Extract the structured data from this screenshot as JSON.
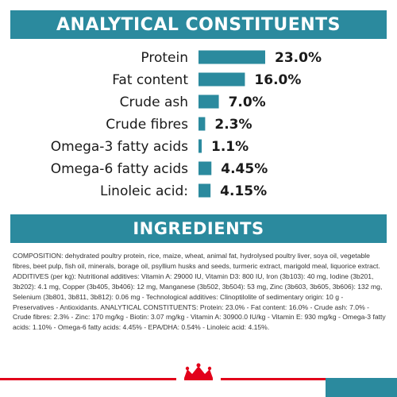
{
  "header": {
    "title": "ANALYTICAL CONSTITUENTS"
  },
  "chart_data": {
    "type": "bar",
    "categories": [
      "Protein",
      "Fat content",
      "Crude ash",
      "Crude fibres",
      "Omega-3 fatty acids",
      "Omega-6 fatty acids",
      "Linoleic acid:"
    ],
    "values": [
      23.0,
      16.0,
      7.0,
      2.3,
      1.1,
      4.45,
      4.15
    ],
    "value_labels": [
      "23.0%",
      "16.0%",
      "7.0%",
      "2.3%",
      "1.1%",
      "4.45%",
      "4.15%"
    ],
    "title": "ANALYTICAL CONSTITUENTS",
    "unit": "%",
    "orientation": "horizontal",
    "bar_color": "#2b8a9e",
    "grid": false,
    "legend": "none"
  },
  "ingredients": {
    "title": "INGREDIENTS",
    "text": "COMPOSITION: dehydrated poultry protein, rice, maize, wheat, animal fat, hydrolysed poultry liver, soya oil, vegetable fibres, beet pulp, fish oil, minerals, borage oil, psyllium husks and seeds, turmeric extract, marigold meal, liquorice extract. ADDITIVES (per kg): Nutritional additives: Vitamin A: 29000 IU, Vitamin D3: 800 IU, Iron (3b103): 40 mg, Iodine (3b201, 3b202): 4.1 mg, Copper (3b405, 3b406): 12 mg, Manganese (3b502, 3b504): 53 mg, Zinc (3b603, 3b605, 3b606): 132 mg, Selenium (3b801, 3b811, 3b812): 0.06 mg - Technological additives: Clinoptilolite of sedimentary origin: 10 g - Preservatives - Antioxidants. ANALYTICAL CONSTITUENTS: Protein: 23.0% - Fat content: 16.0% - Crude ash: 7.0% - Crude fibres: 2.3% - Zinc: 170 mg/kg - Biotin: 3.07 mg/kg - Vitamin A: 30900.0 IU/kg - Vitamin E: 930 mg/kg - Omega-3 fatty acids: 1.10% - Omega-6 fatty acids: 4.45% - EPA/DHA: 0.54% - Linoleic acid: 4.15%."
  },
  "footer": {
    "logo_icon": "royal-canin-crown-icon",
    "accent_red": "#e2001a",
    "accent_teal": "#2b8a9e"
  }
}
